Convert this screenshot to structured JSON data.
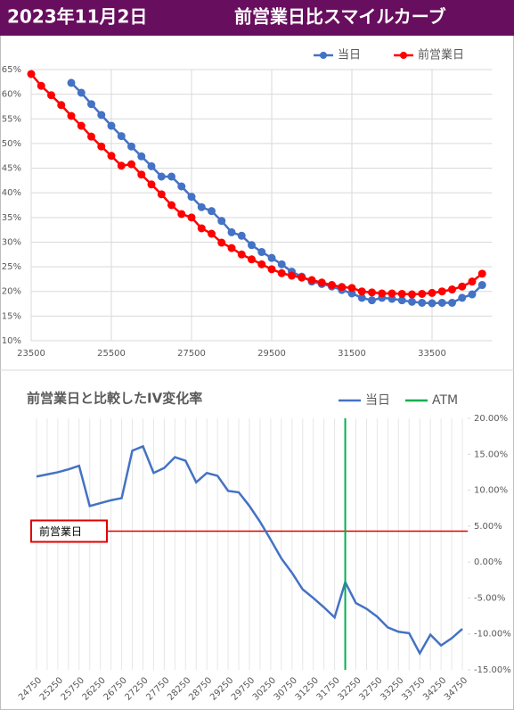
{
  "header": {
    "date": "2023年11月2日",
    "title": "前営業日比スマイルカーブ"
  },
  "chart_data": [
    {
      "type": "line",
      "xlim": [
        23500,
        35000
      ],
      "ylim": [
        10,
        65
      ],
      "xticks": [
        23500,
        25500,
        27500,
        29500,
        31500,
        33500
      ],
      "yticks": [
        {
          "value": 10,
          "label": "10%"
        },
        {
          "value": 15,
          "label": "15%"
        },
        {
          "value": 20,
          "label": "20%"
        },
        {
          "value": 25,
          "label": "25%"
        },
        {
          "value": 30,
          "label": "30%"
        },
        {
          "value": 35,
          "label": "35%"
        },
        {
          "value": 40,
          "label": "40%"
        },
        {
          "value": 45,
          "label": "45%"
        },
        {
          "value": 50,
          "label": "50%"
        },
        {
          "value": 55,
          "label": "55%"
        },
        {
          "value": 60,
          "label": "60%"
        },
        {
          "value": 65,
          "label": "65%"
        }
      ],
      "grid": true,
      "markers": true,
      "legend": "top-right",
      "series": [
        {
          "name": "当日",
          "color": "#4472c4",
          "x": [
            24500,
            24750,
            25000,
            25250,
            25500,
            25750,
            26000,
            26250,
            26500,
            26750,
            27000,
            27250,
            27500,
            27750,
            28000,
            28250,
            28500,
            28750,
            29000,
            29250,
            29500,
            29750,
            30000,
            30250,
            30500,
            30750,
            31000,
            31250,
            31500,
            31750,
            32000,
            32250,
            32500,
            32750,
            33000,
            33250,
            33500,
            33750,
            34000,
            34250,
            34500,
            34750
          ],
          "values": [
            62.3,
            60.3,
            58,
            55.8,
            53.6,
            51.5,
            49.4,
            47.4,
            45.4,
            43.3,
            43.3,
            41.3,
            39.2,
            37.1,
            36.3,
            34.3,
            32,
            31.3,
            29.4,
            28,
            26.8,
            25.5,
            24,
            23,
            22,
            21.5,
            21,
            20.3,
            19.6,
            18.7,
            18.2,
            18.7,
            18.5,
            18.2,
            17.9,
            17.7,
            17.6,
            17.7,
            17.7,
            18.7,
            19.4,
            21.3
          ]
        },
        {
          "name": "前営業日",
          "color": "#ff0000",
          "x": [
            23500,
            23750,
            24000,
            24250,
            24500,
            24750,
            25000,
            25250,
            25500,
            25750,
            26000,
            26250,
            26500,
            26750,
            27000,
            27250,
            27500,
            27750,
            28000,
            28250,
            28500,
            28750,
            29000,
            29250,
            29500,
            29750,
            30000,
            30250,
            30500,
            30750,
            31000,
            31250,
            31500,
            31750,
            32000,
            32250,
            32500,
            32750,
            33000,
            33250,
            33500,
            33750,
            34000,
            34250,
            34500,
            34750
          ],
          "values": [
            64.1,
            61.7,
            59.8,
            57.8,
            55.6,
            53.6,
            51.4,
            49.4,
            47.5,
            45.5,
            45.8,
            43.7,
            41.7,
            39.7,
            37.5,
            35.7,
            35,
            32.8,
            31.7,
            29.9,
            28.8,
            27.5,
            26.5,
            25.5,
            24.5,
            23.7,
            23.2,
            22.8,
            22.3,
            21.8,
            21.3,
            20.9,
            20.7,
            20,
            19.8,
            19.6,
            19.6,
            19.5,
            19.4,
            19.5,
            19.7,
            20,
            20.4,
            21,
            22,
            23.6
          ]
        }
      ]
    },
    {
      "type": "line",
      "title": "前営業日と比較したIV変化率",
      "xlim": [
        24625,
        34875
      ],
      "y2lim": [
        -15,
        20
      ],
      "xticks": [
        24750,
        25250,
        25750,
        26250,
        26750,
        27250,
        27750,
        28250,
        28750,
        29250,
        29750,
        30250,
        30750,
        31250,
        31750,
        32250,
        32750,
        33250,
        33750,
        34250,
        34750
      ],
      "y2ticks": [
        {
          "value": 20,
          "label": "20.00%"
        },
        {
          "value": 15,
          "label": "15.00%"
        },
        {
          "value": 10,
          "label": "10.00%"
        },
        {
          "value": 5,
          "label": "5.00%"
        },
        {
          "value": 0,
          "label": "0.00%"
        },
        {
          "value": -5,
          "label": "-5.00%"
        },
        {
          "value": -10,
          "label": "-10.00%"
        },
        {
          "value": -15,
          "label": "-15.00%"
        }
      ],
      "legend": "top-right",
      "series": [
        {
          "name": "当日",
          "color": "#4472c4",
          "axis": "y2",
          "x": [
            24750,
            25000,
            25250,
            25500,
            25750,
            26000,
            26250,
            26500,
            26750,
            27000,
            27250,
            27500,
            27750,
            28000,
            28250,
            28500,
            28750,
            29000,
            29250,
            29500,
            29750,
            30000,
            30250,
            30500,
            30750,
            31000,
            31250,
            31500,
            31750,
            32000,
            32250,
            32500,
            32750,
            33000,
            33250,
            33500,
            33750,
            34000,
            34250,
            34500,
            34750
          ],
          "values": [
            11.9,
            12.2,
            12.5,
            12.9,
            13.4,
            7.8,
            8.2,
            8.6,
            8.9,
            15.5,
            16.1,
            12.4,
            13.1,
            14.6,
            14.1,
            11.1,
            12.4,
            12.0,
            9.9,
            9.7,
            7.8,
            5.6,
            3.1,
            0.5,
            -1.5,
            -3.8,
            -5.0,
            -6.3,
            -7.7,
            -2.8,
            -5.7,
            -6.5,
            -7.6,
            -9.1,
            -9.7,
            -9.9,
            -12.7,
            -10.1,
            -11.6,
            -10.6,
            -9.3
          ]
        },
        {
          "name": "ATM",
          "color": "#00b050",
          "x": 32000
        }
      ],
      "reference_line": {
        "label": "前営業日",
        "value": 4.3,
        "color": "#e00000"
      }
    }
  ]
}
